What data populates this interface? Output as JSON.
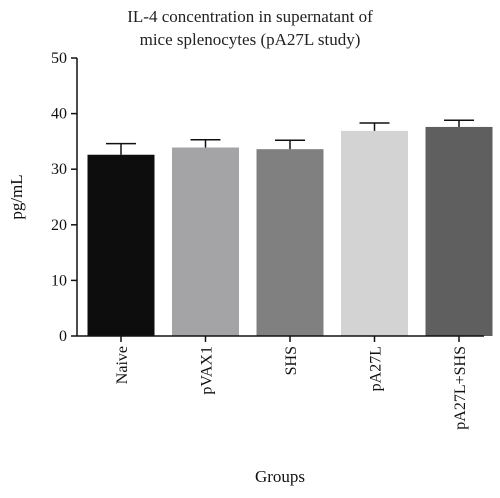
{
  "chart_data": {
    "type": "bar",
    "title_line1": "IL-4 concentration in supernatant of",
    "title_line2": "mice splenocytes (pA27L study)",
    "xlabel": "Groups",
    "ylabel": "pg/mL",
    "ylim": [
      0,
      50
    ],
    "yticks": [
      "0",
      "10",
      "20",
      "30",
      "40",
      "50"
    ],
    "categories": [
      "Naive",
      "pVAX1",
      "SHS",
      "pA27L",
      "pA27L+SHS"
    ],
    "values": [
      32.6,
      33.9,
      33.6,
      36.9,
      37.6
    ],
    "errors": [
      2.0,
      1.4,
      1.6,
      1.4,
      1.2
    ],
    "colors": [
      "#0d0d0d",
      "#a4a4a6",
      "#7f807f",
      "#d3d3d3",
      "#5f5f5f"
    ],
    "grid": false,
    "legend": "none"
  }
}
